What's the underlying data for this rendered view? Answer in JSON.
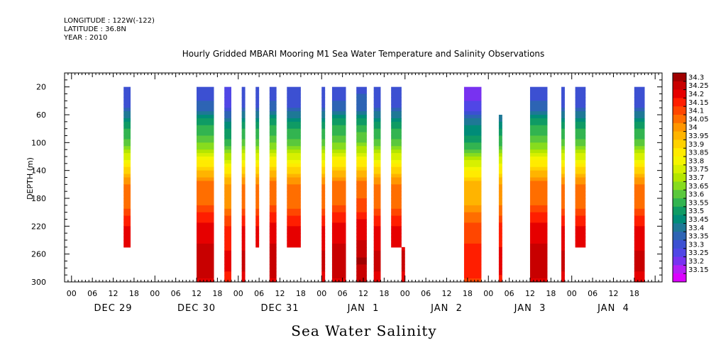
{
  "header": {
    "longitude": "LONGITUDE : 122W(-122)",
    "latitude": "LATITUDE : 36.8N",
    "year": "YEAR : 2010"
  },
  "chart_data": {
    "type": "heatmap",
    "title": "Hourly Gridded MBARI Mooring M1 Sea Water Temperature and Salinity Observations",
    "variable_title": "Sea Water Salinity",
    "ylabel": "DEPTH (m)",
    "y_ticks": [
      "20",
      "60",
      "100",
      "140",
      "180",
      "220",
      "260",
      "300"
    ],
    "ylim": [
      300,
      0
    ],
    "x_hour_ticks": [
      "00",
      "06",
      "12",
      "18",
      "00",
      "06",
      "12",
      "18",
      "00",
      "06",
      "12",
      "18",
      "00",
      "06",
      "12",
      "18",
      "00",
      "06",
      "12",
      "18",
      "00",
      "06",
      "12",
      "18",
      "00",
      "06",
      "12",
      "18"
    ],
    "x_day_labels": [
      "DEC 29",
      "DEC 30",
      "DEC 31",
      "JAN  1",
      "JAN  2",
      "JAN  3",
      "JAN  4"
    ],
    "legend_levels": [
      "34.3",
      "34.25",
      "34.2",
      "34.15",
      "34.1",
      "34.05",
      "34",
      "33.95",
      "33.9",
      "33.85",
      "33.8",
      "33.75",
      "33.7",
      "33.65",
      "33.6",
      "33.55",
      "33.5",
      "33.45",
      "33.4",
      "33.35",
      "33.3",
      "33.25",
      "33.2",
      "33.15"
    ],
    "legend_colors": [
      "#a00000",
      "#c80000",
      "#e60000",
      "#ff1e00",
      "#ff4600",
      "#ff6e00",
      "#ff9600",
      "#ffb400",
      "#ffd200",
      "#ffeb00",
      "#f5f500",
      "#d7f000",
      "#b4e600",
      "#87dc1e",
      "#5ac83c",
      "#32b450",
      "#0f9b64",
      "#008c78",
      "#1e7896",
      "#2d64b4",
      "#3c50d2",
      "#5046e6",
      "#7832f0",
      "#b41ef5",
      "#dc00ff"
    ],
    "profile": {
      "depth": [
        20,
        50,
        70,
        100,
        130,
        160,
        190,
        220,
        240,
        270,
        300
      ],
      "salinity": [
        33.3,
        33.35,
        33.5,
        33.62,
        33.85,
        34.05,
        34.08,
        34.2,
        34.22,
        34.28,
        34.22
      ]
    },
    "segments": [
      {
        "start_hour": 15,
        "end_hour": 17,
        "top": 20,
        "bottom": 250,
        "offset": 0
      },
      {
        "start_hour": 36,
        "end_hour": 41,
        "top": 20,
        "bottom": 300,
        "offset": 0.02
      },
      {
        "start_hour": 44,
        "end_hour": 46,
        "top": 20,
        "bottom": 300,
        "offset": -0.05
      },
      {
        "start_hour": 49,
        "end_hour": 50,
        "top": 20,
        "bottom": 300,
        "offset": 0
      },
      {
        "start_hour": 53,
        "end_hour": 54,
        "top": 20,
        "bottom": 250,
        "offset": 0
      },
      {
        "start_hour": 57,
        "end_hour": 59,
        "top": 20,
        "bottom": 300,
        "offset": 0.02
      },
      {
        "start_hour": 62,
        "end_hour": 66,
        "top": 20,
        "bottom": 250,
        "offset": 0
      },
      {
        "start_hour": 72,
        "end_hour": 73,
        "top": 20,
        "bottom": 300,
        "offset": 0
      },
      {
        "start_hour": 75,
        "end_hour": 79,
        "top": 20,
        "bottom": 300,
        "offset": 0.02
      },
      {
        "start_hour": 82,
        "end_hour": 85,
        "top": 20,
        "bottom": 300,
        "offset": 0.03
      },
      {
        "start_hour": 87,
        "end_hour": 89,
        "top": 20,
        "bottom": 300,
        "offset": 0
      },
      {
        "start_hour": 92,
        "end_hour": 95,
        "top": 20,
        "bottom": 250,
        "offset": 0
      },
      {
        "start_hour": 95,
        "end_hour": 96,
        "top": 250,
        "bottom": 300,
        "offset": 0
      },
      {
        "start_hour": 113,
        "end_hour": 118,
        "top": 20,
        "bottom": 300,
        "offset": -0.08
      },
      {
        "start_hour": 123,
        "end_hour": 124,
        "top": 60,
        "bottom": 300,
        "offset": -0.04
      },
      {
        "start_hour": 132,
        "end_hour": 137,
        "top": 20,
        "bottom": 300,
        "offset": 0.02
      },
      {
        "start_hour": 141,
        "end_hour": 142,
        "top": 20,
        "bottom": 300,
        "offset": 0
      },
      {
        "start_hour": 145,
        "end_hour": 148,
        "top": 20,
        "bottom": 250,
        "offset": 0
      },
      {
        "start_hour": 162,
        "end_hour": 165,
        "top": 20,
        "bottom": 300,
        "offset": 0
      }
    ]
  }
}
